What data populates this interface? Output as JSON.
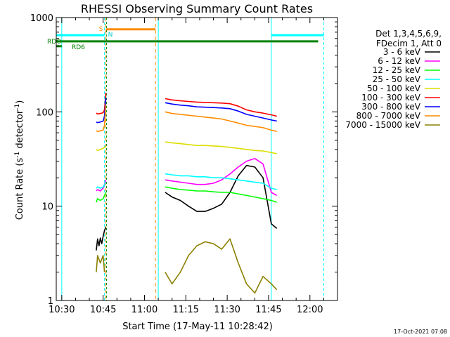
{
  "chart_data": {
    "type": "line",
    "title": "RHESSI Observing Summary Count Rates",
    "xlabel": "Start Time (17-May-11 10:28:42)",
    "ylabel": "Count Rate (s⁻¹ detector⁻¹)",
    "ylabel_main": "Count Rate (s",
    "ylabel_sup1": "-1",
    "ylabel_mid": " detector",
    "ylabel_sup2": "-1",
    "ylabel_end": ")",
    "yscale": "log",
    "ylim": [
      1,
      1000
    ],
    "xlim": [
      "10:28",
      "12:10"
    ],
    "x_ticks": [
      "10:30",
      "10:45",
      "11:00",
      "11:15",
      "11:30",
      "11:45",
      "12:00"
    ],
    "y_ticks": [
      "1",
      "10",
      "100",
      "1000"
    ],
    "legend_header": [
      "Det 1,3,4,5,6,9,",
      "FDecim 1, Att 0"
    ],
    "legend_position": "right",
    "series": [
      {
        "name": "3 - 6 keV",
        "color": "#000000",
        "segments": [
          {
            "x": [
              "10:42:30",
              "10:43",
              "10:43:30",
              "10:44",
              "10:44:30",
              "10:45",
              "10:45:30",
              "10:46"
            ],
            "y": [
              3.4,
              4.5,
              3.8,
              4.6,
              4.0,
              4.8,
              5.5,
              6
            ]
          },
          {
            "x": [
              "11:07:30",
              "11:10",
              "11:13",
              "11:16",
              "11:19",
              "11:22",
              "11:25",
              "11:28",
              "11:31",
              "11:34",
              "11:37",
              "11:40",
              "11:43",
              "11:46",
              "11:48"
            ],
            "y": [
              14,
              12.5,
              11.5,
              10,
              8.8,
              8.8,
              9.5,
              10.5,
              14,
              21,
              27,
              26,
              20,
              6.5,
              5.8
            ]
          }
        ]
      },
      {
        "name": "6 - 12 keV",
        "color": "#ff00ff",
        "segments": [
          {
            "x": [
              "10:42:30",
              "10:43",
              "10:44",
              "10:45",
              "10:45:30",
              "10:46"
            ],
            "y": [
              14.5,
              15,
              14.5,
              15.5,
              17,
              19
            ]
          },
          {
            "x": [
              "11:07:30",
              "11:10",
              "11:13",
              "11:16",
              "11:19",
              "11:22",
              "11:25",
              "11:28",
              "11:31",
              "11:34",
              "11:37",
              "11:40",
              "11:43",
              "11:46",
              "11:48"
            ],
            "y": [
              19,
              18.5,
              18,
              17.5,
              17,
              17,
              17.5,
              19,
              22,
              26,
              30,
              32,
              28,
              14,
              13
            ]
          }
        ]
      },
      {
        "name": "12 - 25 keV",
        "color": "#00ff00",
        "segments": [
          {
            "x": [
              "10:42:30",
              "10:43",
              "10:44",
              "10:45",
              "10:45:30",
              "10:46"
            ],
            "y": [
              11,
              12,
              11.5,
              12,
              13,
              14
            ]
          },
          {
            "x": [
              "11:07:30",
              "11:10",
              "11:13",
              "11:16",
              "11:19",
              "11:22",
              "11:25",
              "11:28",
              "11:31",
              "11:34",
              "11:37",
              "11:40",
              "11:43",
              "11:46",
              "11:48"
            ],
            "y": [
              16,
              15.5,
              15,
              14.8,
              14.5,
              14.5,
              14.2,
              14,
              14,
              13.5,
              13,
              12.5,
              12,
              11.5,
              11
            ]
          }
        ]
      },
      {
        "name": "25 - 50 keV",
        "color": "#00ffff",
        "segments": [
          {
            "x": [
              "10:42:30",
              "10:43",
              "10:44",
              "10:45",
              "10:45:30",
              "10:46"
            ],
            "y": [
              15.5,
              16,
              15.5,
              16,
              17,
              18
            ]
          },
          {
            "x": [
              "11:07:30",
              "11:10",
              "11:13",
              "11:16",
              "11:19",
              "11:22",
              "11:25",
              "11:28",
              "11:31",
              "11:34",
              "11:37",
              "11:40",
              "11:43",
              "11:46",
              "11:48"
            ],
            "y": [
              22,
              21.5,
              21,
              21,
              20.5,
              20.5,
              20,
              20,
              19.5,
              19,
              18.5,
              18,
              17.5,
              15.5,
              15
            ]
          }
        ]
      },
      {
        "name": "50 - 100 keV",
        "color": "#dddd00",
        "segments": [
          {
            "x": [
              "10:42:30",
              "10:43",
              "10:44",
              "10:45",
              "10:45:30",
              "10:46"
            ],
            "y": [
              40,
              39,
              40,
              41,
              42,
              43
            ]
          },
          {
            "x": [
              "11:07:30",
              "11:10",
              "11:13",
              "11:16",
              "11:19",
              "11:22",
              "11:25",
              "11:28",
              "11:31",
              "11:34",
              "11:37",
              "11:40",
              "11:43",
              "11:46",
              "11:48"
            ],
            "y": [
              48,
              47,
              46,
              45,
              44,
              44,
              43.5,
              43,
              42,
              41,
              40,
              39,
              38.5,
              37,
              36
            ]
          }
        ]
      },
      {
        "name": "100 - 300 keV",
        "color": "#ff0000",
        "segments": [
          {
            "x": [
              "10:42:30",
              "10:43",
              "10:44",
              "10:45",
              "10:45:30",
              "10:46"
            ],
            "y": [
              97,
              95,
              96,
              98,
              105,
              160
            ]
          },
          {
            "x": [
              "11:07:30",
              "11:10",
              "11:13",
              "11:16",
              "11:19",
              "11:22",
              "11:25",
              "11:28",
              "11:31",
              "11:34",
              "11:37",
              "11:40",
              "11:43",
              "11:46",
              "11:48"
            ],
            "y": [
              138,
              134,
              131,
              129,
              127,
              126,
              125,
              124,
              122,
              115,
              105,
              100,
              97,
              93,
              90
            ]
          }
        ]
      },
      {
        "name": "300 - 800 keV",
        "color": "#0000ff",
        "segments": [
          {
            "x": [
              "10:42:30",
              "10:43",
              "10:44",
              "10:45",
              "10:45:30",
              "10:46"
            ],
            "y": [
              78,
              77,
              78,
              80,
              90,
              140
            ]
          },
          {
            "x": [
              "11:07:30",
              "11:10",
              "11:13",
              "11:16",
              "11:19",
              "11:22",
              "11:25",
              "11:28",
              "11:31",
              "11:34",
              "11:37",
              "11:40",
              "11:43",
              "11:46",
              "11:48"
            ],
            "y": [
              125,
              121,
              118,
              116,
              113,
              112,
              111,
              110,
              108,
              102,
              94,
              90,
              86,
              82,
              80
            ]
          }
        ]
      },
      {
        "name": "800 - 7000 keV",
        "color": "#ff8c00",
        "segments": [
          {
            "x": [
              "10:42:30",
              "10:43",
              "10:44",
              "10:45",
              "10:45:30",
              "10:46"
            ],
            "y": [
              63,
              62,
              63,
              64,
              72,
              120
            ]
          },
          {
            "x": [
              "11:07:30",
              "11:10",
              "11:13",
              "11:16",
              "11:19",
              "11:22",
              "11:25",
              "11:28",
              "11:31",
              "11:34",
              "11:37",
              "11:40",
              "11:43",
              "11:46",
              "11:48"
            ],
            "y": [
              100,
              96,
              94,
              92,
              90,
              88,
              86,
              84,
              80,
              76,
              72,
              70,
              68,
              64,
              62
            ]
          }
        ]
      },
      {
        "name": "7000 - 15000 keV",
        "color": "#8b8000",
        "segments": [
          {
            "x": [
              "10:42:30",
              "10:43",
              "10:44",
              "10:45",
              "10:45:30"
            ],
            "y": [
              2,
              3,
              2.5,
              3,
              2
            ]
          },
          {
            "x": [
              "11:07:30",
              "11:10",
              "11:13",
              "11:16",
              "11:19",
              "11:22",
              "11:25",
              "11:28",
              "11:31",
              "11:34",
              "11:37",
              "11:40",
              "11:43",
              "11:46",
              "11:48"
            ],
            "y": [
              2,
              1.5,
              2,
              3,
              3.8,
              4.2,
              4,
              3.5,
              4.5,
              2.5,
              1.5,
              1.2,
              1.8,
              1.5,
              1.3
            ]
          }
        ]
      }
    ],
    "annotations": {
      "attenuator_labels": [
        "S",
        "N"
      ],
      "rd_labels": [
        "RDO",
        "RD6"
      ],
      "sun_level": 650,
      "rd_level": 560,
      "sun_segments": [
        [
          "10:28",
          "10:45:30"
        ],
        [
          "11:46",
          "12:05"
        ]
      ],
      "rd_segments": [
        [
          "10:28",
          "12:03"
        ]
      ],
      "rd6_segment": [
        "10:28",
        "10:30"
      ],
      "attenuator_segment": [
        "10:46",
        "11:04"
      ],
      "attenuator_level": 750,
      "cyan_lines": [
        "10:30",
        "10:45:30",
        "11:05",
        "11:46",
        "12:05"
      ],
      "orange_lines": [
        "10:46",
        "11:04"
      ],
      "green_lines": [
        "10:46"
      ]
    },
    "footer_date": "17-Oct-2021 07:08"
  }
}
